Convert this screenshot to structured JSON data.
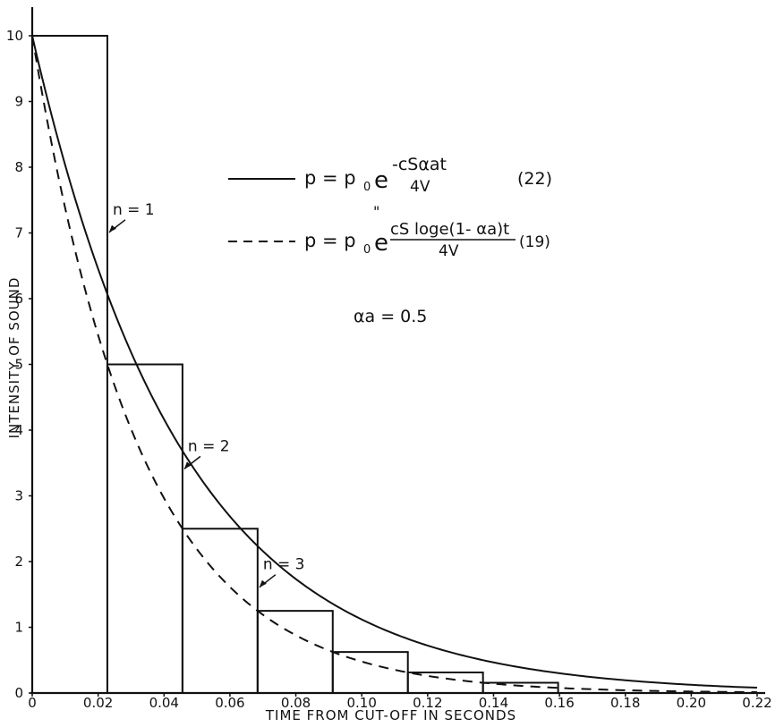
{
  "chart_data": {
    "type": "line",
    "xlabel": "TIME FROM CUT-OFF IN SECONDS",
    "ylabel": "INTENSITY OF SOUND",
    "xlim": [
      0,
      0.22
    ],
    "ylim": [
      0,
      10
    ],
    "x_ticks": [
      "0",
      "0.02",
      "0.04",
      "0.06",
      "0.08",
      "0.10",
      "0.12",
      "0.14",
      "0.16",
      "0.18",
      "0.20",
      "0.22"
    ],
    "y_ticks": [
      "0",
      "1",
      "2",
      "3",
      "4",
      "5",
      "6",
      "7",
      "8",
      "9",
      "10"
    ],
    "steps": {
      "interval": 0.0228,
      "start_value": 10,
      "ratio": 0.5,
      "count": 7,
      "labels": [
        "n = 1",
        "n = 2",
        "n = 3"
      ]
    },
    "series": [
      {
        "style": "solid",
        "equation_number": "(22)",
        "model": "exponential",
        "y0": 10,
        "decay_rate": 21.9
      },
      {
        "style": "dashed",
        "equation_number": "(19)",
        "model": "exponential",
        "y0": 10,
        "decay_rate": 30.4
      }
    ],
    "legend": {
      "eq22_main": "p = p",
      "eq22_sub": "0",
      "eq22_e": "e",
      "eq22_exp_num": "-cSαat",
      "eq22_exp_den": "4V",
      "eq22_num": "(22)",
      "eq19_ditto": "\"",
      "eq19_main": "p = p",
      "eq19_sub": "0",
      "eq19_e": "e",
      "eq19_exp_num": "cS loge(1- αa)t",
      "eq19_exp_den": "4V",
      "eq19_num": "(19)"
    },
    "annotation": "αa = 0.5"
  }
}
